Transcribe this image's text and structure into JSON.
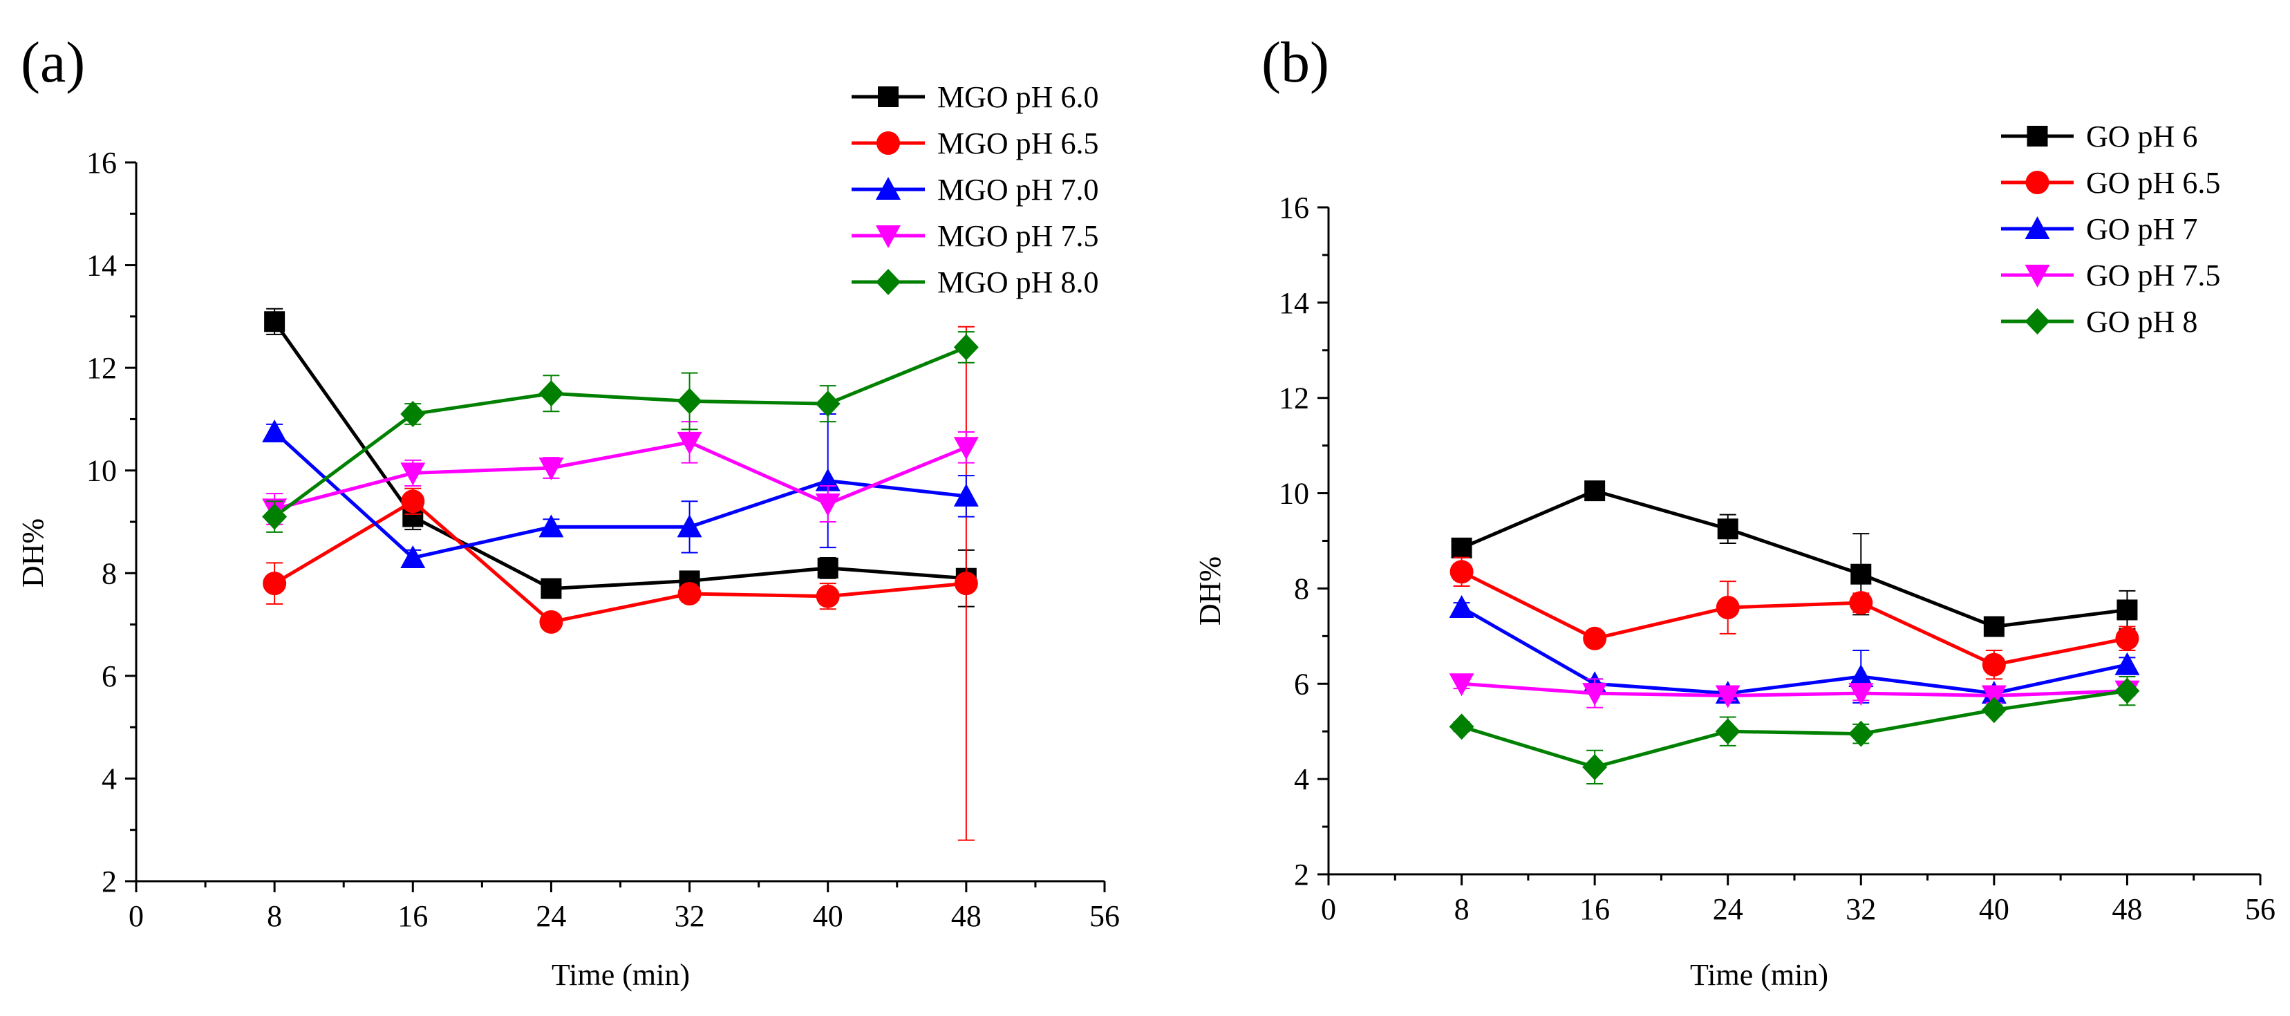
{
  "chart_data": [
    {
      "panel_label": "(a)",
      "type": "line",
      "xlabel": "Time (min)",
      "ylabel": "DH%",
      "xlim": [
        0,
        56
      ],
      "ylim": [
        2,
        16
      ],
      "xticks": [
        0,
        8,
        16,
        24,
        32,
        40,
        48,
        56
      ],
      "yticks": [
        2,
        4,
        6,
        8,
        10,
        12,
        14,
        16
      ],
      "x": [
        8,
        16,
        24,
        32,
        40,
        48
      ],
      "legend_position": "top-right",
      "series": [
        {
          "name": "MGO pH 6.0",
          "color": "#000000",
          "marker": "square",
          "values": [
            12.9,
            9.1,
            7.7,
            7.85,
            8.1,
            7.9
          ],
          "errors": [
            0.25,
            0.25,
            0.1,
            0.1,
            0.2,
            0.55
          ]
        },
        {
          "name": "MGO pH 6.5",
          "color": "#ff0000",
          "marker": "circle",
          "values": [
            7.8,
            9.4,
            7.05,
            7.6,
            7.55,
            7.8
          ],
          "errors": [
            0.4,
            0.25,
            0.15,
            0.15,
            0.25,
            5.0
          ]
        },
        {
          "name": "MGO pH 7.0",
          "color": "#0000ff",
          "marker": "triangle-up",
          "values": [
            10.75,
            8.3,
            8.9,
            8.9,
            9.8,
            9.5
          ],
          "errors": [
            0.15,
            0.15,
            0.15,
            0.5,
            1.3,
            0.4
          ]
        },
        {
          "name": "MGO pH 7.5",
          "color": "#ff00ff",
          "marker": "triangle-down",
          "values": [
            9.25,
            9.95,
            10.05,
            10.55,
            9.35,
            10.45
          ],
          "errors": [
            0.3,
            0.25,
            0.2,
            0.4,
            0.35,
            0.3
          ]
        },
        {
          "name": "MGO pH 8.0",
          "color": "#008000",
          "marker": "diamond",
          "values": [
            9.1,
            11.1,
            11.5,
            11.35,
            11.3,
            12.4
          ],
          "errors": [
            0.3,
            0.2,
            0.35,
            0.55,
            0.35,
            0.3
          ]
        }
      ]
    },
    {
      "panel_label": "(b)",
      "type": "line",
      "xlabel": "Time (min)",
      "ylabel": "DH%",
      "xlim": [
        0,
        56
      ],
      "ylim": [
        2,
        16
      ],
      "xticks": [
        0,
        8,
        16,
        24,
        32,
        40,
        48,
        56
      ],
      "yticks": [
        2,
        4,
        6,
        8,
        10,
        12,
        14,
        16
      ],
      "x": [
        8,
        16,
        24,
        32,
        40,
        48
      ],
      "legend_position": "top-right",
      "series": [
        {
          "name": "GO pH 6",
          "color": "#000000",
          "marker": "square",
          "values": [
            8.85,
            10.05,
            9.25,
            8.3,
            7.2,
            7.55
          ],
          "errors": [
            0.1,
            0.1,
            0.3,
            0.85,
            0.1,
            0.4
          ]
        },
        {
          "name": "GO pH 6.5",
          "color": "#ff0000",
          "marker": "circle",
          "values": [
            8.35,
            6.95,
            7.6,
            7.7,
            6.4,
            6.95
          ],
          "errors": [
            0.3,
            0.1,
            0.55,
            0.2,
            0.3,
            0.25
          ]
        },
        {
          "name": "GO pH 7",
          "color": "#0000ff",
          "marker": "triangle-up",
          "values": [
            7.6,
            6.0,
            5.8,
            6.15,
            5.8,
            6.4
          ],
          "errors": [
            0.1,
            0.1,
            0.1,
            0.55,
            0.1,
            0.15
          ]
        },
        {
          "name": "GO pH 7.5",
          "color": "#ff00ff",
          "marker": "triangle-down",
          "values": [
            6.0,
            5.8,
            5.75,
            5.8,
            5.75,
            5.85
          ],
          "errors": [
            0.1,
            0.3,
            0.1,
            0.15,
            0.15,
            0.1
          ]
        },
        {
          "name": "GO pH 8",
          "color": "#008000",
          "marker": "diamond",
          "values": [
            5.1,
            4.25,
            5.0,
            4.95,
            5.45,
            5.85
          ],
          "errors": [
            0.1,
            0.35,
            0.3,
            0.2,
            0.1,
            0.3
          ]
        }
      ]
    }
  ]
}
